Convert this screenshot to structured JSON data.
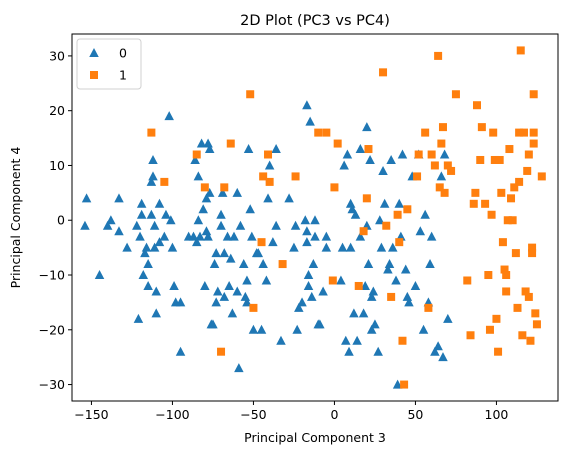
{
  "chart_data": {
    "type": "scatter",
    "title": "2D Plot (PC3 vs PC4)",
    "xlabel": "Principal Component 3",
    "ylabel": "Principal Component 4",
    "xlim": [
      -162,
      138
    ],
    "ylim": [
      -33,
      34
    ],
    "xticks": [
      -150,
      -100,
      -50,
      0,
      50,
      100
    ],
    "yticks": [
      -30,
      -20,
      -10,
      0,
      10,
      20,
      30
    ],
    "grid": false,
    "legend_position": "top-left",
    "series": [
      {
        "name": "0",
        "marker": "triangle",
        "color": "#1f77b4",
        "points": [
          [
            -153,
            4
          ],
          [
            -154,
            -1
          ],
          [
            -145,
            -10
          ],
          [
            -140,
            -1
          ],
          [
            -138,
            0
          ],
          [
            -133,
            -2
          ],
          [
            -133,
            4
          ],
          [
            -128,
            -5
          ],
          [
            -122,
            -1
          ],
          [
            -121,
            -18
          ],
          [
            -120,
            -3
          ],
          [
            -119,
            1
          ],
          [
            -119,
            3
          ],
          [
            -118,
            -10
          ],
          [
            -117,
            -6
          ],
          [
            -116,
            -5
          ],
          [
            -115,
            -8
          ],
          [
            -115,
            -12
          ],
          [
            -113,
            1
          ],
          [
            -113,
            7
          ],
          [
            -112,
            8
          ],
          [
            -112,
            11
          ],
          [
            -111,
            -5
          ],
          [
            -111,
            -1
          ],
          [
            -110,
            -13
          ],
          [
            -110,
            -17
          ],
          [
            -108,
            -4
          ],
          [
            -108,
            3
          ],
          [
            -105,
            -3
          ],
          [
            -104,
            1
          ],
          [
            -102,
            19
          ],
          [
            -101,
            0
          ],
          [
            -100,
            -5
          ],
          [
            -99,
            -12
          ],
          [
            -98,
            -15
          ],
          [
            -95,
            -15
          ],
          [
            -95,
            -24
          ],
          [
            -90,
            -3
          ],
          [
            -87,
            -3
          ],
          [
            -86,
            11
          ],
          [
            -85,
            -4
          ],
          [
            -84,
            0
          ],
          [
            -84,
            8
          ],
          [
            -83,
            -3
          ],
          [
            -82,
            14
          ],
          [
            -81,
            2
          ],
          [
            -80,
            -12
          ],
          [
            -79,
            -2
          ],
          [
            -79,
            4
          ],
          [
            -78,
            14
          ],
          [
            -78,
            -3
          ],
          [
            -77,
            5
          ],
          [
            -77,
            13
          ],
          [
            -76,
            -19
          ],
          [
            -75,
            -19
          ],
          [
            -74,
            -8
          ],
          [
            -73,
            -6
          ],
          [
            -73,
            -15
          ],
          [
            -72,
            -13
          ],
          [
            -70,
            1
          ],
          [
            -70,
            -1
          ],
          [
            -69,
            5
          ],
          [
            -68,
            -6
          ],
          [
            -68,
            -14
          ],
          [
            -66,
            -3
          ],
          [
            -65,
            -12
          ],
          [
            -64,
            -7
          ],
          [
            -63,
            -17
          ],
          [
            -62,
            -3
          ],
          [
            -60,
            5
          ],
          [
            -60,
            -13
          ],
          [
            -59,
            -27
          ],
          [
            -58,
            -1
          ],
          [
            -56,
            -8
          ],
          [
            -55,
            -14
          ],
          [
            -54,
            -11
          ],
          [
            -54,
            -15
          ],
          [
            -53,
            13
          ],
          [
            -52,
            2
          ],
          [
            -51,
            -3
          ],
          [
            -50,
            -20
          ],
          [
            -48,
            -6
          ],
          [
            -47,
            -6
          ],
          [
            -45,
            -20
          ],
          [
            -44,
            -8
          ],
          [
            -42,
            -11
          ],
          [
            -41,
            4
          ],
          [
            -40,
            10
          ],
          [
            -38,
            -4
          ],
          [
            -36,
            13
          ],
          [
            -36,
            -1
          ],
          [
            -33,
            -22
          ],
          [
            -28,
            4
          ],
          [
            -25,
            -5
          ],
          [
            -24,
            -1
          ],
          [
            -23,
            -20
          ],
          [
            -22,
            -16
          ],
          [
            -20,
            -15
          ],
          [
            -18,
            0
          ],
          [
            -17,
            -2
          ],
          [
            -17,
            -4
          ],
          [
            -17,
            21
          ],
          [
            -16,
            -10
          ],
          [
            -16,
            -12
          ],
          [
            -15,
            18
          ],
          [
            -14,
            -14
          ],
          [
            -13,
            -8
          ],
          [
            -12,
            -3
          ],
          [
            -12,
            0
          ],
          [
            -10,
            -19
          ],
          [
            -9,
            -19
          ],
          [
            -7,
            -13
          ],
          [
            -5,
            -3
          ],
          [
            -5,
            -5
          ],
          [
            4,
            -11
          ],
          [
            5,
            -5
          ],
          [
            6,
            10
          ],
          [
            7,
            -22
          ],
          [
            8,
            12
          ],
          [
            9,
            -24
          ],
          [
            10,
            3
          ],
          [
            10,
            -5
          ],
          [
            11,
            2
          ],
          [
            12,
            -17
          ],
          [
            13,
            1
          ],
          [
            14,
            -22
          ],
          [
            16,
            -3
          ],
          [
            16,
            13
          ],
          [
            18,
            -17
          ],
          [
            19,
            -12
          ],
          [
            20,
            17
          ],
          [
            20,
            -1
          ],
          [
            21,
            -8
          ],
          [
            22,
            11
          ],
          [
            23,
            -14
          ],
          [
            23,
            -20
          ],
          [
            24,
            -13
          ],
          [
            25,
            -19
          ],
          [
            27,
            -24
          ],
          [
            28,
            0
          ],
          [
            29,
            -5
          ],
          [
            30,
            9
          ],
          [
            31,
            3
          ],
          [
            33,
            -9
          ],
          [
            34,
            -8
          ],
          [
            35,
            11
          ],
          [
            36,
            -5
          ],
          [
            38,
            -11
          ],
          [
            39,
            -30
          ],
          [
            40,
            3
          ],
          [
            41,
            -3
          ],
          [
            42,
            12
          ],
          [
            44,
            -9
          ],
          [
            45,
            -14
          ],
          [
            46,
            -15
          ],
          [
            48,
            8
          ],
          [
            50,
            -12
          ],
          [
            52,
            12
          ],
          [
            53,
            -2
          ],
          [
            55,
            -20
          ],
          [
            56,
            1
          ],
          [
            58,
            -15
          ],
          [
            59,
            -8
          ],
          [
            60,
            -3
          ],
          [
            62,
            -24
          ],
          [
            64,
            -23
          ],
          [
            66,
            8
          ],
          [
            67,
            -25
          ],
          [
            68,
            12
          ],
          [
            70,
            -18
          ]
        ]
      },
      {
        "name": "1",
        "marker": "square",
        "color": "#ff7f0e",
        "points": [
          [
            -113,
            16
          ],
          [
            -105,
            7
          ],
          [
            -85,
            12
          ],
          [
            -80,
            6
          ],
          [
            -70,
            -24
          ],
          [
            -68,
            6
          ],
          [
            -64,
            14
          ],
          [
            -52,
            23
          ],
          [
            -50,
            -16
          ],
          [
            -45,
            -4
          ],
          [
            -44,
            8
          ],
          [
            -41,
            12
          ],
          [
            -40,
            7
          ],
          [
            -32,
            -8
          ],
          [
            -24,
            8
          ],
          [
            -10,
            16
          ],
          [
            -5,
            16
          ],
          [
            -1,
            -11
          ],
          [
            0,
            6
          ],
          [
            2,
            14
          ],
          [
            15,
            -12
          ],
          [
            18,
            -2
          ],
          [
            20,
            4
          ],
          [
            21,
            13
          ],
          [
            30,
            27
          ],
          [
            32,
            -1
          ],
          [
            35,
            -14
          ],
          [
            39,
            1
          ],
          [
            40,
            -4
          ],
          [
            42,
            -22
          ],
          [
            43,
            -30
          ],
          [
            45,
            2
          ],
          [
            51,
            8
          ],
          [
            52,
            12
          ],
          [
            56,
            16
          ],
          [
            58,
            -16
          ],
          [
            60,
            12
          ],
          [
            62,
            10
          ],
          [
            64,
            30
          ],
          [
            65,
            6
          ],
          [
            66,
            14
          ],
          [
            67,
            17
          ],
          [
            68,
            5
          ],
          [
            70,
            10
          ],
          [
            72,
            9
          ],
          [
            75,
            23
          ],
          [
            82,
            -11
          ],
          [
            84,
            -21
          ],
          [
            86,
            3
          ],
          [
            87,
            5
          ],
          [
            88,
            21
          ],
          [
            90,
            11
          ],
          [
            91,
            17
          ],
          [
            93,
            3
          ],
          [
            95,
            -10
          ],
          [
            96,
            -20
          ],
          [
            97,
            1
          ],
          [
            98,
            16
          ],
          [
            99,
            11
          ],
          [
            100,
            -18
          ],
          [
            101,
            -24
          ],
          [
            102,
            11
          ],
          [
            103,
            5
          ],
          [
            104,
            -4
          ],
          [
            105,
            -9
          ],
          [
            106,
            -10
          ],
          [
            106,
            -13
          ],
          [
            107,
            0
          ],
          [
            108,
            13
          ],
          [
            109,
            4
          ],
          [
            110,
            0
          ],
          [
            111,
            6
          ],
          [
            112,
            -6
          ],
          [
            113,
            -16
          ],
          [
            114,
            7
          ],
          [
            115,
            31
          ],
          [
            116,
            -21
          ],
          [
            117,
            16
          ],
          [
            118,
            -13
          ],
          [
            119,
            9
          ],
          [
            120,
            12
          ],
          [
            120,
            -14
          ],
          [
            121,
            -22
          ],
          [
            122,
            -5
          ],
          [
            122,
            -6
          ],
          [
            123,
            16
          ],
          [
            123,
            14
          ],
          [
            124,
            -17
          ],
          [
            125,
            -19
          ],
          [
            128,
            8
          ],
          [
            123,
            23
          ],
          [
            114,
            16
          ]
        ]
      }
    ]
  }
}
